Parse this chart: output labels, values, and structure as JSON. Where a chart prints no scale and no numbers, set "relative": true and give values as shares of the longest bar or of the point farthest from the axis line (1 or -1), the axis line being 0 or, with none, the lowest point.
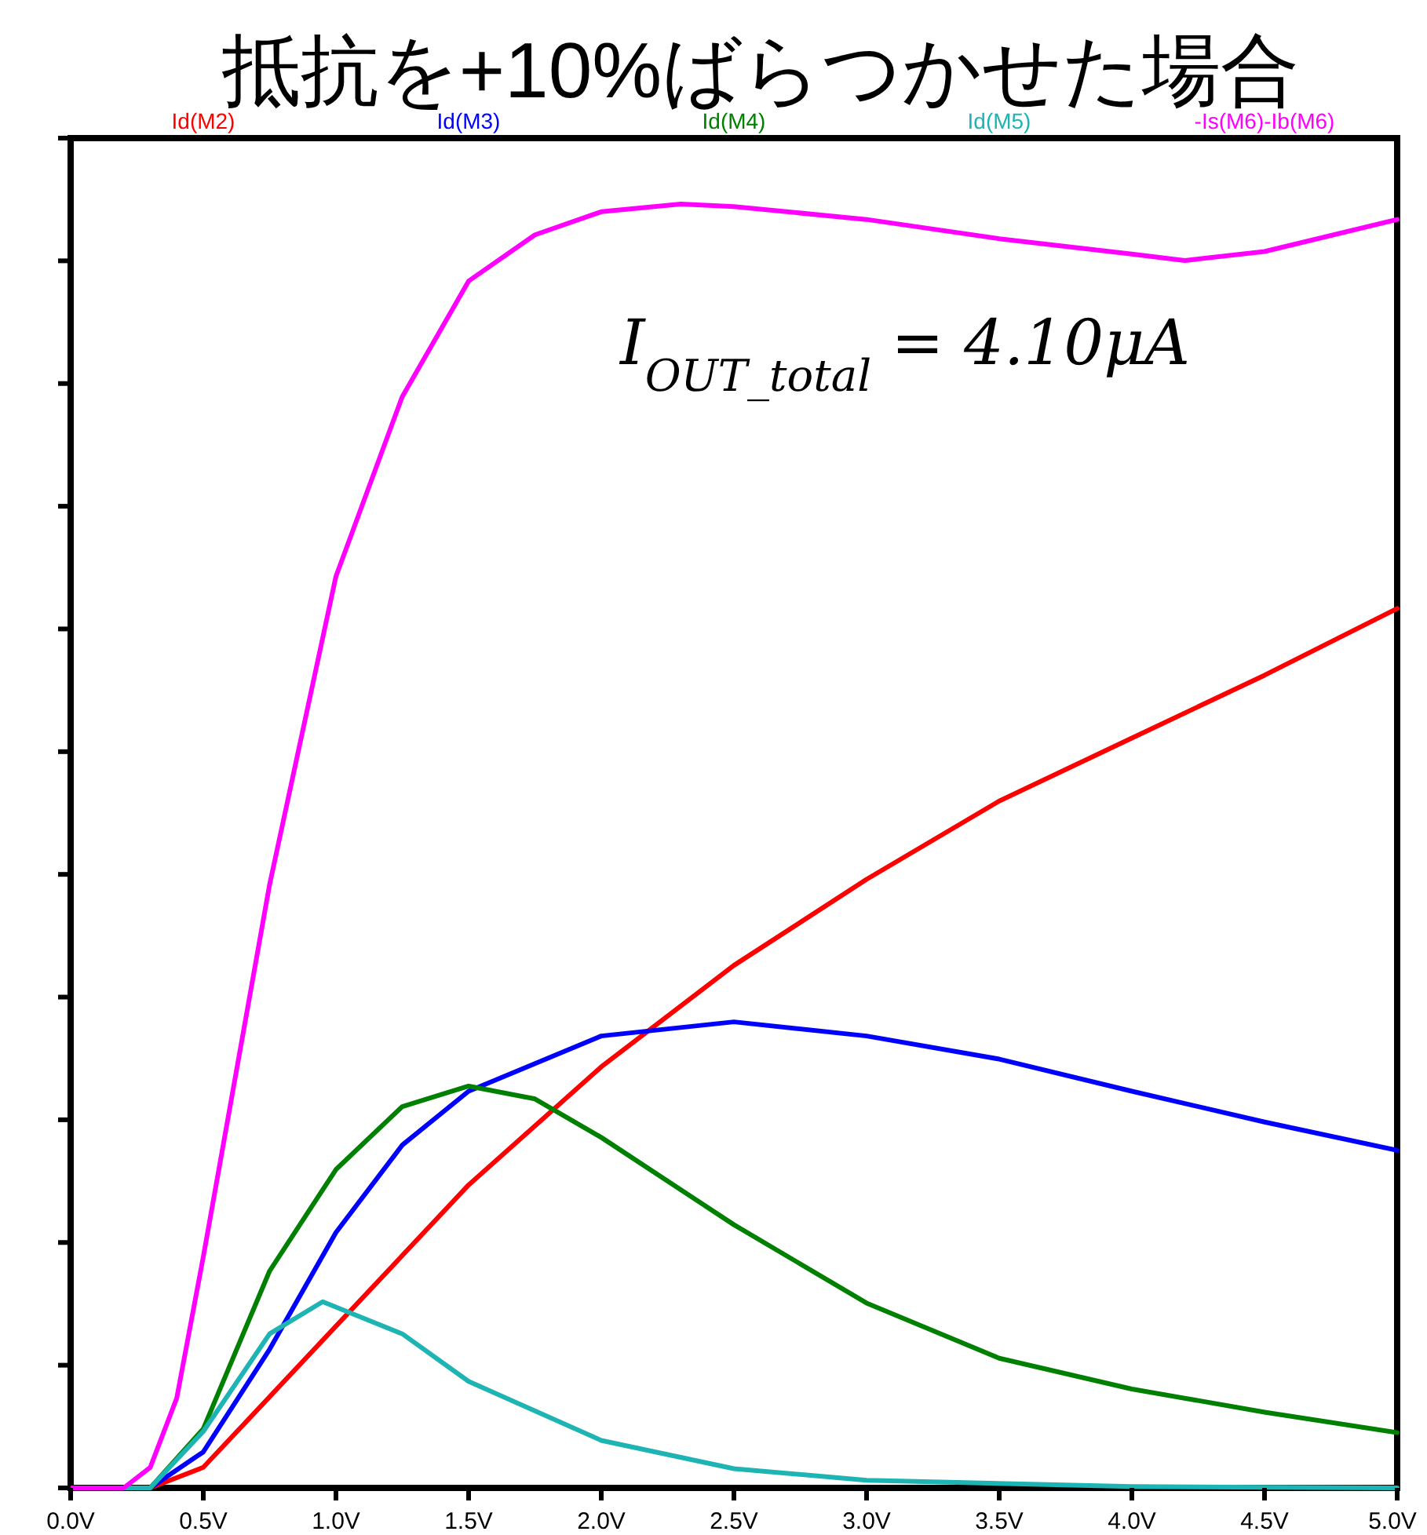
{
  "chart_data": {
    "type": "line",
    "title": "抵抗を+10%ばらつかせた場合",
    "relative": true,
    "legend": "top",
    "grid": false,
    "xlim": [
      0,
      5
    ],
    "xticks": [
      {
        "value": 0,
        "label": "0.0V"
      },
      {
        "value": 0.5,
        "label": "0.5V"
      },
      {
        "value": 1,
        "label": "1.0V"
      },
      {
        "value": 1.5,
        "label": "1.5V"
      },
      {
        "value": 2,
        "label": "2.0V"
      },
      {
        "value": 2.5,
        "label": "2.5V"
      },
      {
        "value": 3,
        "label": "3.0V"
      },
      {
        "value": 3.5,
        "label": "3.5V"
      },
      {
        "value": 4,
        "label": "4.0V"
      },
      {
        "value": 4.5,
        "label": "4.5V"
      },
      {
        "value": 5,
        "label": "5.0V"
      }
    ],
    "annotations": [
      "I$_{OUT_total}$ = 4.10μA"
    ],
    "series": [
      {
        "name": "Id(M2)",
        "color": "#ff0000",
        "x": [
          0,
          0.3,
          0.5,
          0.75,
          1.0,
          1.5,
          2.0,
          2.5,
          3.0,
          3.5,
          4.0,
          4.5,
          5.0
        ],
        "values": [
          0,
          0,
          0.016,
          0.071,
          0.126,
          0.236,
          0.328,
          0.407,
          0.474,
          0.535,
          0.584,
          0.633,
          0.685
        ]
      },
      {
        "name": "Id(M3)",
        "color": "#0000ff",
        "x": [
          0,
          0.3,
          0.5,
          0.75,
          1.0,
          1.25,
          1.5,
          2.0,
          2.5,
          3.0,
          3.5,
          4.0,
          4.5,
          5.0
        ],
        "values": [
          0,
          0,
          0.028,
          0.108,
          0.199,
          0.267,
          0.309,
          0.352,
          0.363,
          0.352,
          0.334,
          0.309,
          0.285,
          0.263
        ]
      },
      {
        "name": "Id(M4)",
        "color": "#008000",
        "x": [
          0,
          0.3,
          0.5,
          0.75,
          1.0,
          1.25,
          1.5,
          1.75,
          2.0,
          2.5,
          3.0,
          3.5,
          4.0,
          4.5,
          5.0
        ],
        "values": [
          0,
          0,
          0.046,
          0.169,
          0.248,
          0.297,
          0.313,
          0.303,
          0.273,
          0.205,
          0.144,
          0.101,
          0.077,
          0.059,
          0.043
        ]
      },
      {
        "name": "Id(M5)",
        "color": "#1fb4b4",
        "x": [
          0,
          0.3,
          0.5,
          0.75,
          0.95,
          1.25,
          1.5,
          2.0,
          2.5,
          3.0,
          4.0,
          5.0
        ],
        "values": [
          0,
          0,
          0.044,
          0.12,
          0.145,
          0.12,
          0.083,
          0.037,
          0.015,
          0.006,
          0.001,
          0
        ]
      },
      {
        "name": "-Is(M6)-Ib(M6)",
        "color": "#ff00ff",
        "x": [
          0,
          0.2,
          0.3,
          0.4,
          0.5,
          0.75,
          1.0,
          1.25,
          1.5,
          1.75,
          2.0,
          2.3,
          2.5,
          3.0,
          3.5,
          4.0,
          4.2,
          4.5,
          5.0
        ],
        "values": [
          0,
          0,
          0.016,
          0.07,
          0.18,
          0.47,
          0.71,
          0.85,
          0.94,
          0.976,
          0.994,
          1.0,
          0.998,
          0.988,
          0.973,
          0.961,
          0.956,
          0.963,
          0.988
        ]
      }
    ]
  }
}
